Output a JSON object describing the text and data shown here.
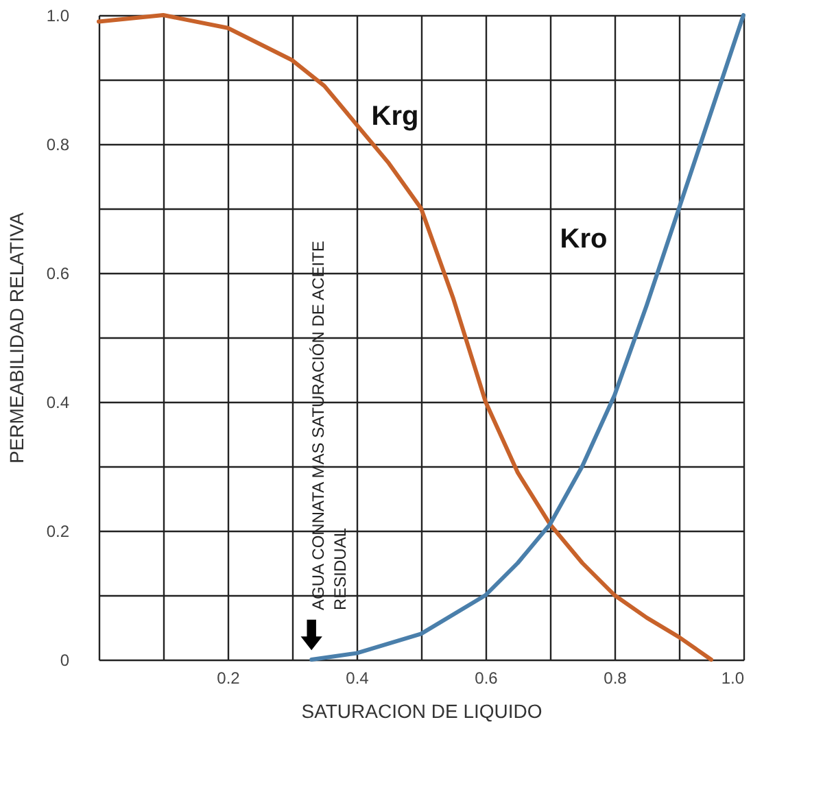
{
  "chart_data": {
    "type": "line",
    "xlabel": "SATURACION DE LIQUIDO",
    "ylabel": "PERMEABILIDAD RELATIVA",
    "xlim": [
      0,
      1
    ],
    "ylim": [
      0,
      1
    ],
    "xticks": [
      {
        "value": 0,
        "label": null
      },
      {
        "value": 0.1,
        "label": null
      },
      0.2,
      {
        "value": 0.3,
        "label": null
      },
      0.4,
      {
        "value": 0.5,
        "label": null
      },
      0.6,
      {
        "value": 0.7,
        "label": null
      },
      0.8,
      {
        "value": 0.9,
        "label": null
      },
      {
        "value": 1,
        "label": "1.0"
      }
    ],
    "yticks": [
      0,
      {
        "value": 0.1,
        "label": null
      },
      0.2,
      {
        "value": 0.3,
        "label": null
      },
      0.4,
      {
        "value": 0.5,
        "label": null
      },
      0.6,
      {
        "value": 0.7,
        "label": null
      },
      0.8,
      {
        "value": 0.9,
        "label": null
      },
      {
        "value": 1,
        "label": "1.0"
      }
    ],
    "grid": true,
    "marker": "none",
    "line_style": "solid",
    "series": [
      {
        "name": "Krg",
        "color": "#c8622a",
        "x": [
          0,
          0.1,
          0.2,
          0.3,
          0.35,
          0.4,
          0.45,
          0.5,
          0.55,
          0.6,
          0.65,
          0.7,
          0.75,
          0.8,
          0.85,
          0.9,
          0.95
        ],
        "values": [
          0.99,
          1.0,
          0.98,
          0.93,
          0.89,
          0.83,
          0.77,
          0.7,
          0.56,
          0.4,
          0.29,
          0.21,
          0.15,
          0.1,
          0.065,
          0.035,
          0
        ]
      },
      {
        "name": "Kro",
        "color": "#4a7fab",
        "x": [
          0.33,
          0.4,
          0.5,
          0.6,
          0.65,
          0.7,
          0.75,
          0.8,
          0.85,
          0.9,
          0.95,
          1.0
        ],
        "values": [
          0,
          0.01,
          0.04,
          0.1,
          0.15,
          0.21,
          0.3,
          0.41,
          0.55,
          0.7,
          0.85,
          1.0
        ]
      }
    ],
    "annotations": [
      "AGUA CONNATA MAS SATURACIÓN DE ACEITE RESIDUAL"
    ]
  }
}
